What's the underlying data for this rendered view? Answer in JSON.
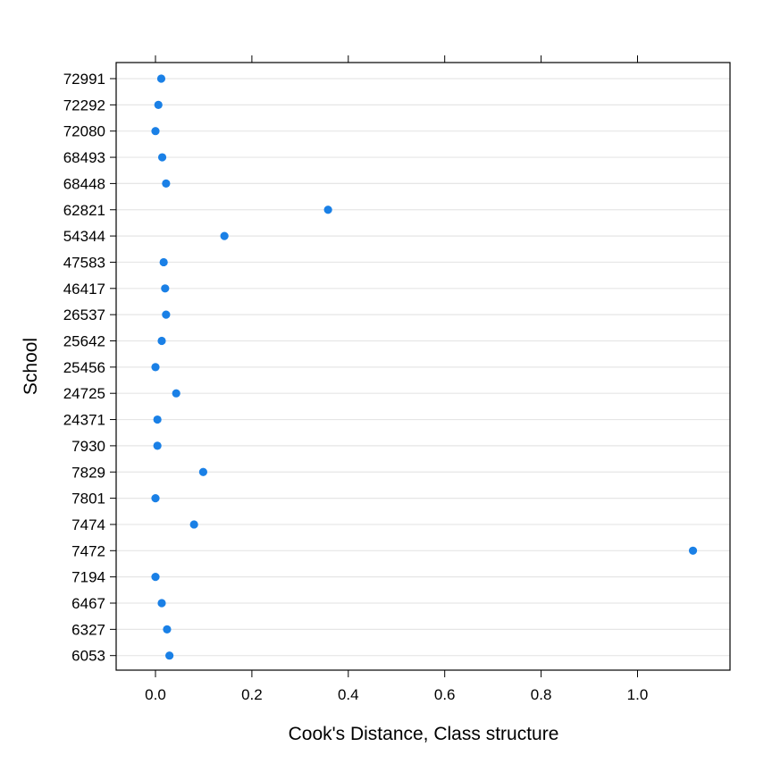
{
  "chart_data": {
    "type": "scatter",
    "title": "",
    "xlabel": "Cook's Distance, Class structure",
    "ylabel": "School",
    "xlim": [
      -0.08,
      1.2
    ],
    "xticks": [
      0.0,
      0.2,
      0.4,
      0.6,
      0.8,
      1.0
    ],
    "xtick_labels": [
      "0.0",
      "0.2",
      "0.4",
      "0.6",
      "0.8",
      "1.0"
    ],
    "grid": "horizontal",
    "point_color": "#1a80e6",
    "categories": [
      "72991",
      "72292",
      "72080",
      "68493",
      "68448",
      "62821",
      "54344",
      "47583",
      "46417",
      "26537",
      "25642",
      "25456",
      "24725",
      "24371",
      "7930",
      "7829",
      "7801",
      "7474",
      "7472",
      "7194",
      "6467",
      "6327",
      "6053"
    ],
    "values": [
      0.012,
      0.006,
      0.0,
      0.014,
      0.022,
      0.358,
      0.143,
      0.017,
      0.02,
      0.022,
      0.013,
      0.0,
      0.043,
      0.004,
      0.004,
      0.099,
      0.0,
      0.08,
      1.115,
      0.0,
      0.013,
      0.024,
      0.029
    ]
  }
}
